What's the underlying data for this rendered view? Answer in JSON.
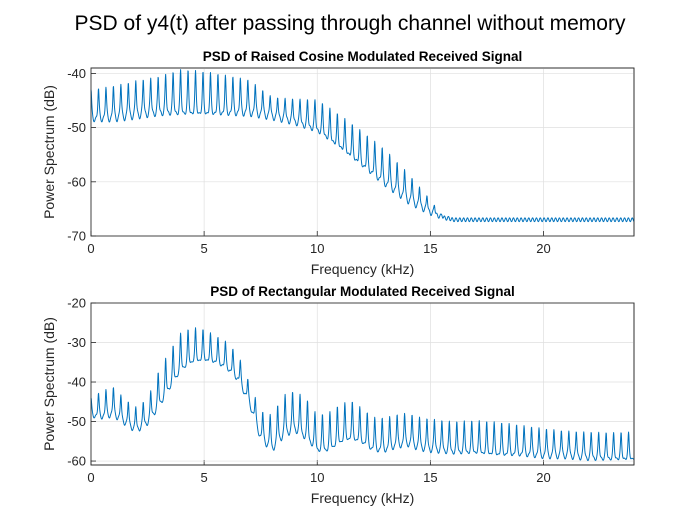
{
  "figure": {
    "title": "PSD of y4(t) after passing through channel without memory"
  },
  "colors": {
    "line": "#0072BD",
    "grid": "#dfdfdf",
    "axis": "#262626"
  },
  "chart_data": [
    {
      "type": "line",
      "title": "PSD of Raised Cosine Modulated Received Signal",
      "xlabel": "Frequency (kHz)",
      "ylabel": "Power Spectrum (dB)",
      "xlim": [
        0,
        24
      ],
      "ylim": [
        -70,
        -39
      ],
      "xticks": [
        0,
        5,
        10,
        15,
        20
      ],
      "yticks": [
        -70,
        -60,
        -50,
        -40
      ],
      "grid": true,
      "comb_spacing_khz": 0.33,
      "series": [
        {
          "name": "",
          "floor": {
            "x": [
              0,
              1,
              2,
              3,
              4,
              5,
              6,
              7,
              8,
              9,
              10,
              11,
              12,
              13,
              14,
              15,
              15.5,
              16,
              16.3,
              24
            ],
            "y": [
              -49,
              -49,
              -48.5,
              -48,
              -48,
              -48,
              -48,
              -48,
              -48.5,
              -49.5,
              -51,
              -54,
              -57.5,
              -61,
              -64,
              -66,
              -66.6,
              -67,
              -67,
              -67
            ]
          },
          "peaks": {
            "x": [
              0,
              1,
              2,
              3,
              4,
              5,
              6,
              7,
              8,
              9,
              10,
              11,
              12,
              13,
              14,
              15,
              15.5,
              16
            ],
            "y": [
              -43,
              -42,
              -41,
              -40.5,
              -39.5,
              -40,
              -40.5,
              -41,
              -44,
              -44.5,
              -45,
              -48,
              -51,
              -54,
              -58,
              -63,
              -66,
              -67
            ]
          }
        }
      ]
    },
    {
      "type": "line",
      "title": "PSD of Rectangular Modulated Received Signal",
      "xlabel": "Frequency (kHz)",
      "ylabel": "Power Spectrum (dB)",
      "xlim": [
        0,
        24
      ],
      "ylim": [
        -61,
        -20
      ],
      "xticks": [
        0,
        5,
        10,
        15,
        20
      ],
      "yticks": [
        -60,
        -50,
        -40,
        -30,
        -20
      ],
      "grid": true,
      "comb_spacing_khz": 0.33,
      "series": [
        {
          "name": "",
          "floor": {
            "x": [
              0,
              0.5,
              1,
              1.5,
              2,
              2.5,
              3,
              3.5,
              4,
              4.5,
              5,
              5.5,
              6,
              6.5,
              7,
              7.5,
              8,
              8.5,
              9,
              9.5,
              10,
              10.5,
              11,
              11.5,
              12,
              12.5,
              13,
              13.5,
              14,
              14.5,
              15,
              16,
              17,
              18,
              19,
              20,
              21,
              22,
              23,
              24
            ],
            "y": [
              -49,
              -49.5,
              -49,
              -51,
              -53,
              -51,
              -47,
              -42,
              -37.5,
              -35.5,
              -35,
              -35.5,
              -37,
              -40,
              -46,
              -55,
              -58,
              -54.5,
              -53,
              -55,
              -58,
              -58,
              -56,
              -55,
              -56,
              -58,
              -58,
              -57,
              -56.5,
              -57.5,
              -58,
              -58.5,
              -58.5,
              -59,
              -59,
              -59.5,
              -59.5,
              -60,
              -60,
              -60
            ]
          },
          "peaks": {
            "x": [
              0,
              0.5,
              1,
              1.5,
              2,
              2.5,
              3,
              3.5,
              4,
              4.5,
              5,
              5.5,
              6,
              6.5,
              7,
              7.5,
              8,
              8.5,
              9,
              9.5,
              10,
              10.5,
              11,
              11.5,
              12,
              12.5,
              13,
              13.5,
              14,
              14.5,
              15,
              16,
              17,
              18,
              19,
              20,
              21,
              22,
              23,
              24
            ],
            "y": [
              -44,
              -42,
              -41,
              -44,
              -46,
              -44,
              -37,
              -32,
              -27.5,
              -26.5,
              -27,
              -28.5,
              -30,
              -33,
              -40,
              -47,
              -48,
              -43,
              -42,
              -44,
              -48.5,
              -48,
              -46,
              -45,
              -47,
              -49,
              -49,
              -48,
              -47.5,
              -48.5,
              -49,
              -50,
              -50,
              -50.5,
              -51,
              -51.5,
              -52,
              -52.5,
              -53,
              -53
            ]
          }
        }
      ]
    }
  ]
}
